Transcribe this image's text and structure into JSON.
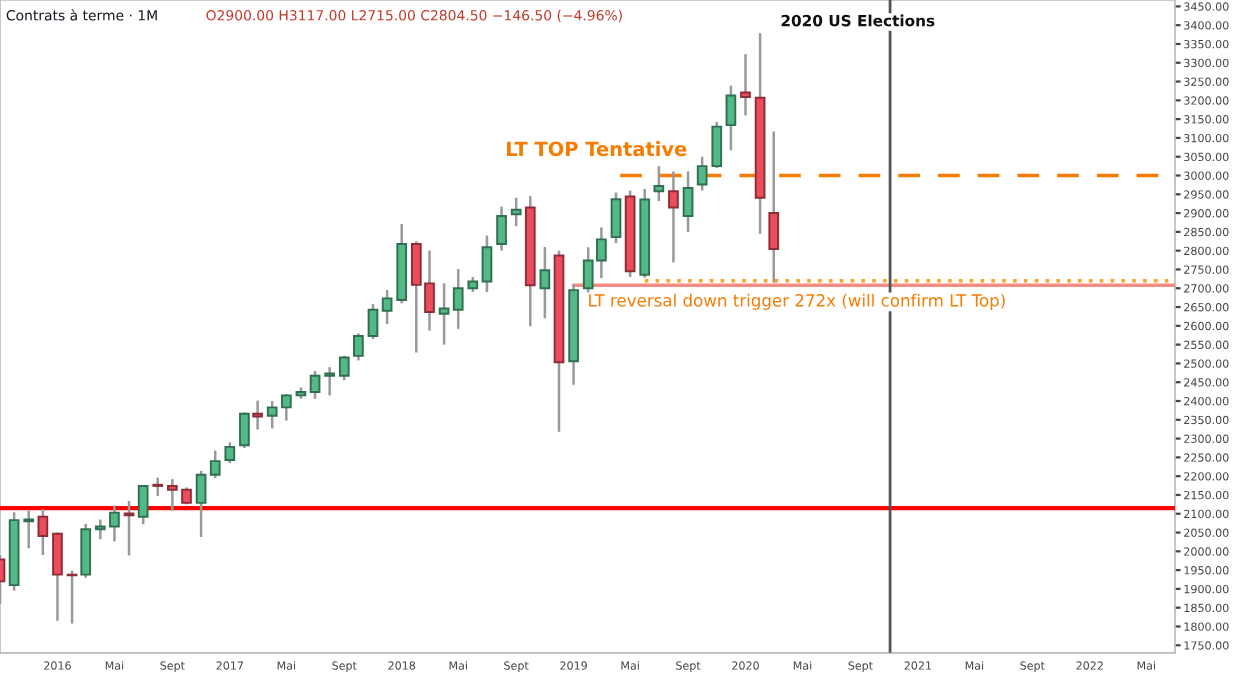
{
  "chart_data": {
    "type": "candlestick",
    "title": "Contrats à terme · 1M",
    "subtitle": "O2900.00 H3117.00 L2715.00 C2804.50 −146.50 (−4.96%)",
    "x": [
      "2015-09",
      "2015-10",
      "2015-11",
      "2015-12",
      "2016-01",
      "2016-02",
      "2016-03",
      "2016-04",
      "2016-05",
      "2016-06",
      "2016-07",
      "2016-08",
      "2016-09",
      "2016-10",
      "2016-11",
      "2016-12",
      "2017-01",
      "2017-02",
      "2017-03",
      "2017-04",
      "2017-05",
      "2017-06",
      "2017-07",
      "2017-08",
      "2017-09",
      "2017-10",
      "2017-11",
      "2017-12",
      "2018-01",
      "2018-02",
      "2018-03",
      "2018-04",
      "2018-05",
      "2018-06",
      "2018-07",
      "2018-08",
      "2018-09",
      "2018-10",
      "2018-11",
      "2018-12",
      "2019-01",
      "2019-02",
      "2019-03",
      "2019-04",
      "2019-05",
      "2019-06",
      "2019-07",
      "2019-08",
      "2019-09",
      "2019-10",
      "2019-11",
      "2019-12",
      "2020-01",
      "2020-02",
      "2020-03"
    ],
    "ohlc": [
      [
        1978,
        1990,
        1860,
        1920
      ],
      [
        1910,
        2104,
        1895,
        2083
      ],
      [
        2080,
        2108,
        2008,
        2085
      ],
      [
        2092,
        2113,
        1990,
        2041
      ],
      [
        2047,
        2050,
        1815,
        1938
      ],
      [
        1938,
        1948,
        1808,
        1936
      ],
      [
        1938,
        2073,
        1930,
        2059
      ],
      [
        2059,
        2085,
        2032,
        2066
      ],
      [
        2066,
        2122,
        2026,
        2103
      ],
      [
        2101,
        2134,
        1989,
        2096
      ],
      [
        2092,
        2175,
        2072,
        2174
      ],
      [
        2177,
        2196,
        2147,
        2174
      ],
      [
        2174,
        2192,
        2108,
        2164
      ],
      [
        2164,
        2170,
        2125,
        2129
      ],
      [
        2129,
        2214,
        2038,
        2204
      ],
      [
        2204,
        2268,
        2195,
        2240
      ],
      [
        2243,
        2290,
        2235,
        2278
      ],
      [
        2282,
        2370,
        2275,
        2366
      ],
      [
        2366,
        2401,
        2324,
        2359
      ],
      [
        2361,
        2400,
        2327,
        2383
      ],
      [
        2383,
        2418,
        2348,
        2415
      ],
      [
        2415,
        2436,
        2406,
        2424
      ],
      [
        2424,
        2480,
        2406,
        2467
      ],
      [
        2467,
        2490,
        2415,
        2473
      ],
      [
        2467,
        2520,
        2455,
        2516
      ],
      [
        2520,
        2580,
        2508,
        2573
      ],
      [
        2573,
        2658,
        2565,
        2643
      ],
      [
        2640,
        2695,
        2605,
        2673
      ],
      [
        2669,
        2871,
        2660,
        2818
      ],
      [
        2818,
        2825,
        2529,
        2709
      ],
      [
        2713,
        2800,
        2587,
        2637
      ],
      [
        2632,
        2713,
        2550,
        2646
      ],
      [
        2643,
        2751,
        2592,
        2700
      ],
      [
        2700,
        2730,
        2690,
        2718
      ],
      [
        2718,
        2840,
        2690,
        2809
      ],
      [
        2818,
        2917,
        2800,
        2892
      ],
      [
        2897,
        2941,
        2865,
        2909
      ],
      [
        2915,
        2945,
        2599,
        2708
      ],
      [
        2700,
        2810,
        2620,
        2748
      ],
      [
        2787,
        2800,
        2318,
        2503
      ],
      [
        2506,
        2710,
        2443,
        2695
      ],
      [
        2700,
        2809,
        2681,
        2774
      ],
      [
        2774,
        2862,
        2727,
        2830
      ],
      [
        2836,
        2955,
        2820,
        2937
      ],
      [
        2944,
        2960,
        2730,
        2745
      ],
      [
        2736,
        2964,
        2728,
        2936
      ],
      [
        2958,
        3025,
        2932,
        2972
      ],
      [
        2958,
        3011,
        2769,
        2915
      ],
      [
        2892,
        3011,
        2850,
        2967
      ],
      [
        2976,
        3050,
        2960,
        3025
      ],
      [
        3025,
        3142,
        3020,
        3130
      ],
      [
        3134,
        3239,
        3067,
        3213
      ],
      [
        3221,
        3323,
        3160,
        3209
      ],
      [
        3207,
        3379,
        2845,
        2941
      ],
      [
        2900,
        3117,
        2715,
        2804.5
      ]
    ],
    "colors": [
      "#eb4d5c",
      "#53b987",
      "#53b987",
      "#eb4d5c",
      "#eb4d5c",
      "#eb4d5c",
      "#53b987",
      "#53b987",
      "#53b987",
      "#eb4d5c",
      "#53b987",
      "#eb4d5c",
      "#eb4d5c",
      "#eb4d5c",
      "#53b987",
      "#53b987",
      "#53b987",
      "#53b987",
      "#eb4d5c",
      "#53b987",
      "#53b987",
      "#53b987",
      "#53b987",
      "#53b987",
      "#53b987",
      "#53b987",
      "#53b987",
      "#53b987",
      "#53b987",
      "#eb4d5c",
      "#eb4d5c",
      "#53b987",
      "#53b987",
      "#53b987",
      "#53b987",
      "#53b987",
      "#53b987",
      "#eb4d5c",
      "#53b987",
      "#eb4d5c",
      "#53b987",
      "#53b987",
      "#53b987",
      "#53b987",
      "#eb4d5c",
      "#53b987",
      "#53b987",
      "#eb4d5c",
      "#53b987",
      "#53b987",
      "#53b987",
      "#53b987",
      "#eb4d5c",
      "#eb4d5c",
      "#eb4d5c"
    ],
    "series": [
      {
        "type": "line",
        "x": [
          "2019-04-10",
          "2022-07"
        ],
        "values": [
          3000,
          3000
        ],
        "color": "#f57c00",
        "line_style": "dashed"
      },
      {
        "type": "line",
        "x": [
          "2019-06-01",
          "2022-07"
        ],
        "values": [
          2720,
          2720
        ],
        "color": "#f5a623",
        "line_style": "dotted"
      },
      {
        "type": "line",
        "x": [
          "2019-01-01",
          "2022-07"
        ],
        "values": [
          2708,
          2708
        ],
        "color": "#f28b82",
        "line_style": "solid"
      }
    ],
    "ref_lines": [
      {
        "axis": "y",
        "value": 2115,
        "color": "#ff0000",
        "line_style": "solid"
      },
      {
        "axis": "x",
        "value": "2020-11-03",
        "color": "#555555",
        "line_style": "solid"
      }
    ],
    "annotations": [
      "LT TOP Tentative",
      "LT reversal down trigger 272x (will confirm LT Top)",
      "2020 US Elections"
    ],
    "xlim": [
      "2015-09-01",
      "2022-07-01"
    ],
    "xticks": [
      {
        "value": "2016-01",
        "label": "2016"
      },
      {
        "value": "2016-05",
        "label": "Mai"
      },
      {
        "value": "2016-09",
        "label": "Sept"
      },
      {
        "value": "2017-01",
        "label": "2017"
      },
      {
        "value": "2017-05",
        "label": "Mai"
      },
      {
        "value": "2017-09",
        "label": "Sept"
      },
      {
        "value": "2018-01",
        "label": "2018"
      },
      {
        "value": "2018-05",
        "label": "Mai"
      },
      {
        "value": "2018-09",
        "label": "Sept"
      },
      {
        "value": "2019-01",
        "label": "2019"
      },
      {
        "value": "2019-05",
        "label": "Mai"
      },
      {
        "value": "2019-09",
        "label": "Sept"
      },
      {
        "value": "2020-01",
        "label": "2020"
      },
      {
        "value": "2020-05",
        "label": "Mai"
      },
      {
        "value": "2020-09",
        "label": "Sept"
      },
      {
        "value": "2021-01",
        "label": "2021"
      },
      {
        "value": "2021-05",
        "label": "Mai"
      },
      {
        "value": "2021-09",
        "label": "Sept"
      },
      {
        "value": "2022-01",
        "label": "2022"
      },
      {
        "value": "2022-05",
        "label": "Mai"
      }
    ],
    "ylim": [
      1730,
      3467
    ],
    "yticks": [
      {
        "value": 1750,
        "label": "1750.00"
      },
      {
        "value": 1800,
        "label": "1800.00"
      },
      {
        "value": 1850,
        "label": "1850.00"
      },
      {
        "value": 1900,
        "label": "1900.00"
      },
      {
        "value": 1950,
        "label": "1950.00"
      },
      {
        "value": 2000,
        "label": "2000.00"
      },
      {
        "value": 2050,
        "label": "2050.00"
      },
      {
        "value": 2100,
        "label": "2100.00"
      },
      {
        "value": 2150,
        "label": "2150.00"
      },
      {
        "value": 2200,
        "label": "2200.00"
      },
      {
        "value": 2250,
        "label": "2250.00"
      },
      {
        "value": 2300,
        "label": "2300.00"
      },
      {
        "value": 2350,
        "label": "2350.00"
      },
      {
        "value": 2400,
        "label": "2400.00"
      },
      {
        "value": 2450,
        "label": "2450.00"
      },
      {
        "value": 2500,
        "label": "2500.00"
      },
      {
        "value": 2550,
        "label": "2550.00"
      },
      {
        "value": 2600,
        "label": "2600.00"
      },
      {
        "value": 2650,
        "label": "2650.00"
      },
      {
        "value": 2700,
        "label": "2700.00"
      },
      {
        "value": 2750,
        "label": "2750.00"
      },
      {
        "value": 2800,
        "label": "2800.00"
      },
      {
        "value": 2850,
        "label": "2850.00"
      },
      {
        "value": 2900,
        "label": "2900.00"
      },
      {
        "value": 2950,
        "label": "2950.00"
      },
      {
        "value": 3000,
        "label": "3000.00"
      },
      {
        "value": 3050,
        "label": "3050.00"
      },
      {
        "value": 3100,
        "label": "3100.00"
      },
      {
        "value": 3150,
        "label": "3150.00"
      },
      {
        "value": 3200,
        "label": "3200.00"
      },
      {
        "value": 3250,
        "label": "3250.00"
      },
      {
        "value": 3300,
        "label": "3300.00"
      },
      {
        "value": 3350,
        "label": "3350.00"
      },
      {
        "value": 3400,
        "label": "3400.00"
      },
      {
        "value": 3450,
        "label": "3450.00"
      }
    ],
    "grid": false,
    "legend": false
  }
}
